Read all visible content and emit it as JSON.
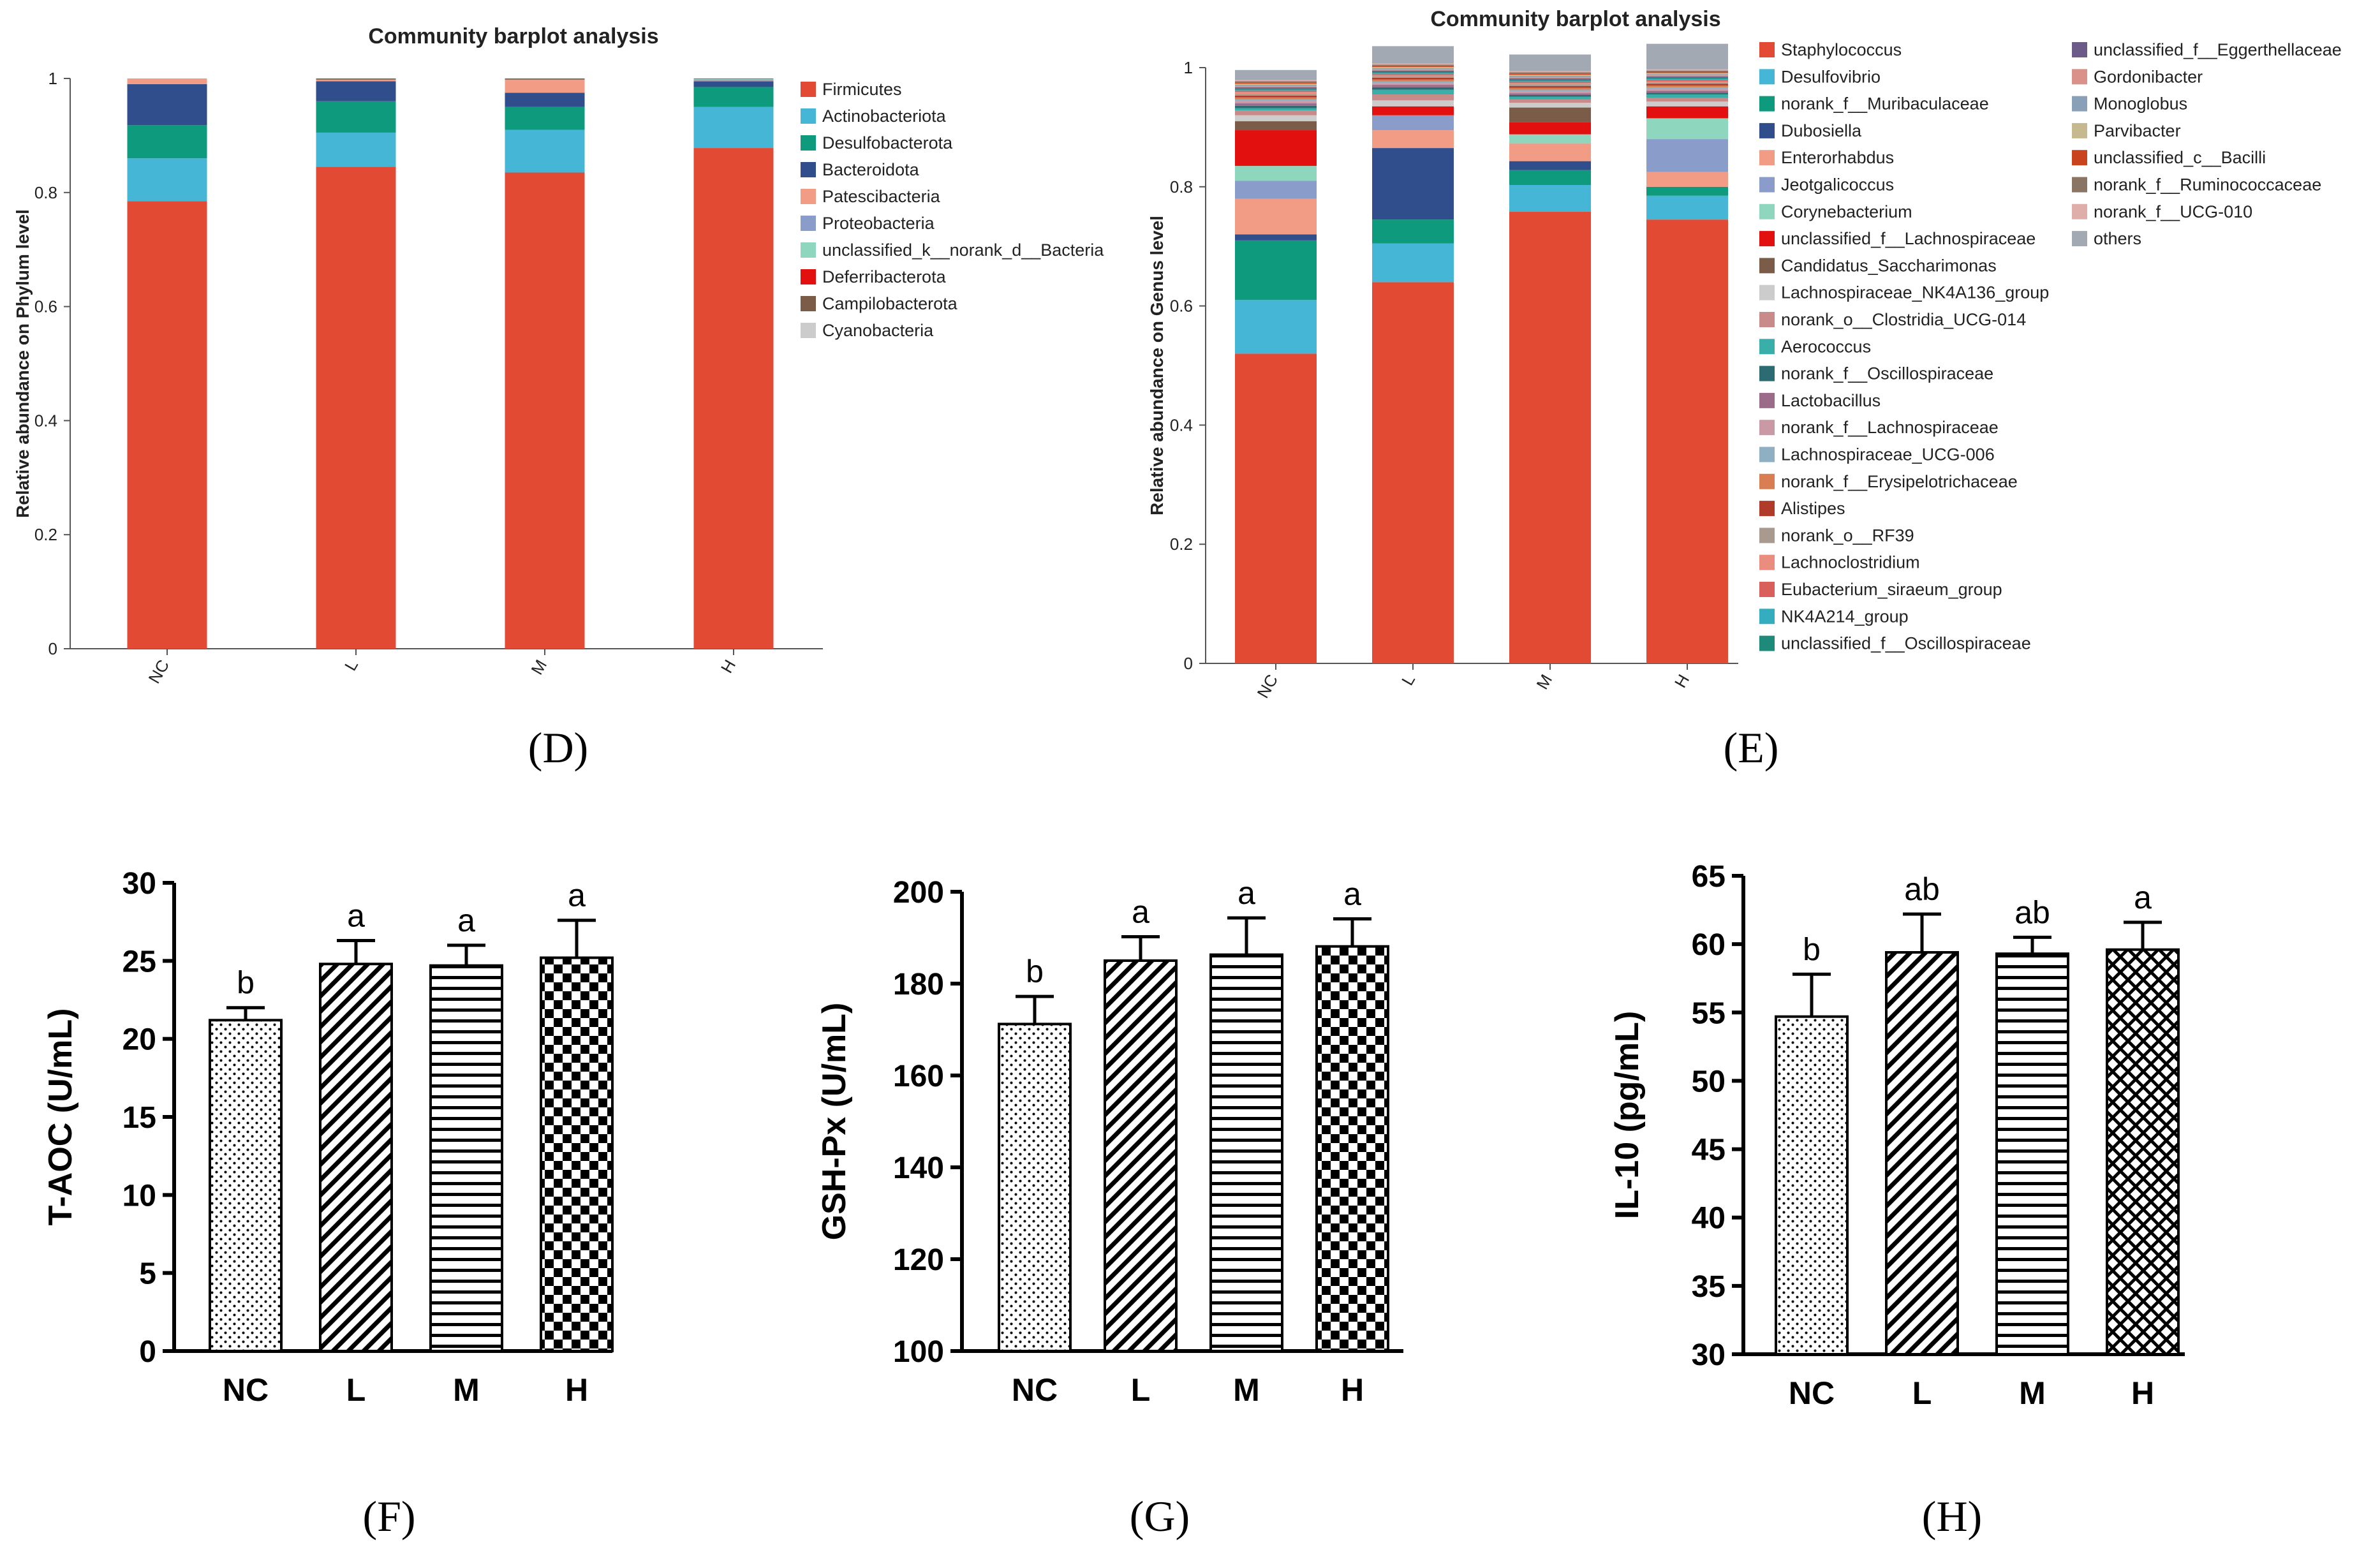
{
  "colors": {
    "phylum": [
      "#e34a33",
      "#45b6d6",
      "#0d9a7d",
      "#304d8c",
      "#f29c85",
      "#8a9cc9",
      "#8fd6bf",
      "#e31010",
      "#7a5c48",
      "#cccccc"
    ],
    "genus": [
      "#e34a33",
      "#45b6d6",
      "#0d9a7d",
      "#304d8c",
      "#f29c85",
      "#8a9cc9",
      "#8fd6bf",
      "#e31010",
      "#7a5c48",
      "#cccccc",
      "#c98a8a",
      "#3aaea8",
      "#2d6b73",
      "#9b6b8a",
      "#c99aa5",
      "#8fb0c2",
      "#d97d52",
      "#b13b2a",
      "#a89a8e",
      "#eb8d7e",
      "#d9605a",
      "#34aebf",
      "#1e8a7a",
      "#6c5a88",
      "#d9918a",
      "#8a9fb8",
      "#c7b98f",
      "#c9431e",
      "#8a7565",
      "#e0aeaa",
      "#a3a9b2"
    ]
  },
  "chart_data": [
    {
      "panel": "D",
      "type": "bar",
      "stacked": true,
      "title": "Community barplot analysis",
      "xlabel": "",
      "ylabel": "Relative abundance on Phylum level",
      "ylim": [
        0,
        1
      ],
      "yticks": [
        "0",
        "0.2",
        "0.4",
        "0.6",
        "0.8",
        "1"
      ],
      "categories": [
        "NC",
        "L",
        "M",
        "H"
      ],
      "series": [
        {
          "name": "Firmicutes",
          "values": [
            0.785,
            0.845,
            0.835,
            0.878
          ]
        },
        {
          "name": "Actinobacteriota",
          "values": [
            0.075,
            0.06,
            0.075,
            0.072
          ]
        },
        {
          "name": "Desulfobacterota",
          "values": [
            0.058,
            0.055,
            0.04,
            0.035
          ]
        },
        {
          "name": "Bacteroidota",
          "values": [
            0.072,
            0.035,
            0.025,
            0.01
          ]
        },
        {
          "name": "Patescibacteria",
          "values": [
            0.01,
            0.003,
            0.023,
            0.001
          ]
        },
        {
          "name": "Proteobacteria",
          "values": [
            0.0,
            0.0,
            0.0,
            0.002
          ]
        },
        {
          "name": "unclassified_k__norank_d__Bacteria",
          "values": [
            0.0,
            0.0,
            0.0,
            0.001
          ]
        },
        {
          "name": "Deferribacterota",
          "values": [
            0.0,
            0.0,
            0.0,
            0.0
          ]
        },
        {
          "name": "Campilobacterota",
          "values": [
            0.0,
            0.002,
            0.002,
            0.001
          ]
        },
        {
          "name": "Cyanobacteria",
          "values": [
            0.0,
            0.0,
            0.0,
            0.0
          ]
        }
      ]
    },
    {
      "panel": "E",
      "type": "bar",
      "stacked": true,
      "title": "Community barplot analysis",
      "xlabel": "",
      "ylabel": "Relative abundance on Genus level",
      "ylim": [
        0,
        1
      ],
      "yticks": [
        "0",
        "0.2",
        "0.4",
        "0.6",
        "0.8",
        "1"
      ],
      "categories": [
        "NC",
        "L",
        "M",
        "H"
      ],
      "series": [
        {
          "name": "Staphylococcus",
          "values": [
            0.52,
            0.64,
            0.758,
            0.745
          ]
        },
        {
          "name": "Desulfovibrio",
          "values": [
            0.09,
            0.065,
            0.045,
            0.04
          ]
        },
        {
          "name": "norank_f__Muribaculaceae",
          "values": [
            0.1,
            0.04,
            0.025,
            0.015
          ]
        },
        {
          "name": "Dubosiella",
          "values": [
            0.01,
            0.12,
            0.015,
            0.0
          ]
        },
        {
          "name": "Enterorhabdus",
          "values": [
            0.06,
            0.03,
            0.03,
            0.025
          ]
        },
        {
          "name": "Jeotgalicoccus",
          "values": [
            0.03,
            0.025,
            0.0,
            0.055
          ]
        },
        {
          "name": "Corynebacterium",
          "values": [
            0.025,
            0.0,
            0.015,
            0.035
          ]
        },
        {
          "name": "unclassified_f__Lachnospiraceae",
          "values": [
            0.06,
            0.015,
            0.02,
            0.02
          ]
        },
        {
          "name": "Candidatus_Saccharimonas",
          "values": [
            0.015,
            0.0,
            0.025,
            0.0
          ]
        },
        {
          "name": "Lachnospiraceae_NK4A136_group",
          "values": [
            0.01,
            0.01,
            0.008,
            0.008
          ]
        },
        {
          "name": "norank_o__Clostridia_UCG-014",
          "values": [
            0.008,
            0.01,
            0.006,
            0.006
          ]
        },
        {
          "name": "Aerococcus",
          "values": [
            0.004,
            0.008,
            0.004,
            0.006
          ]
        },
        {
          "name": "norank_f__Oscillospiraceae",
          "values": [
            0.004,
            0.004,
            0.003,
            0.003
          ]
        },
        {
          "name": "Lactobacillus",
          "values": [
            0.004,
            0.004,
            0.003,
            0.003
          ]
        },
        {
          "name": "norank_f__Lachnospiraceae",
          "values": [
            0.004,
            0.003,
            0.003,
            0.003
          ]
        },
        {
          "name": "Lachnospiraceae_UCG-006",
          "values": [
            0.003,
            0.003,
            0.003,
            0.003
          ]
        },
        {
          "name": "norank_f__Erysipelotrichaceae",
          "values": [
            0.003,
            0.003,
            0.003,
            0.003
          ]
        },
        {
          "name": "Alistipes",
          "values": [
            0.003,
            0.003,
            0.003,
            0.003
          ]
        },
        {
          "name": "norank_o__RF39",
          "values": [
            0.003,
            0.002,
            0.003,
            0.002
          ]
        },
        {
          "name": "Lachnoclostridium",
          "values": [
            0.003,
            0.002,
            0.002,
            0.002
          ]
        },
        {
          "name": "Eubacterium_siraeum_group",
          "values": [
            0.002,
            0.002,
            0.002,
            0.002
          ]
        },
        {
          "name": "NK4A214_group",
          "values": [
            0.002,
            0.002,
            0.002,
            0.002
          ]
        },
        {
          "name": "unclassified_f__Oscillospiraceae",
          "values": [
            0.002,
            0.002,
            0.002,
            0.002
          ]
        },
        {
          "name": "unclassified_f__Eggerthellaceae",
          "values": [
            0.002,
            0.002,
            0.002,
            0.002
          ]
        },
        {
          "name": "Gordonibacter",
          "values": [
            0.002,
            0.002,
            0.002,
            0.002
          ]
        },
        {
          "name": "Monoglobus",
          "values": [
            0.002,
            0.002,
            0.002,
            0.002
          ]
        },
        {
          "name": "Parvibacter",
          "values": [
            0.002,
            0.002,
            0.002,
            0.002
          ]
        },
        {
          "name": "unclassified_c__Bacilli",
          "values": [
            0.002,
            0.002,
            0.002,
            0.002
          ]
        },
        {
          "name": "norank_f__Ruminococcaceae",
          "values": [
            0.002,
            0.002,
            0.002,
            0.002
          ]
        },
        {
          "name": "norank_f__UCG-010",
          "values": [
            0.002,
            0.002,
            0.002,
            0.002
          ]
        },
        {
          "name": "others",
          "values": [
            0.017,
            0.029,
            0.028,
            0.043
          ]
        }
      ]
    },
    {
      "panel": "F",
      "type": "bar",
      "title": "",
      "xlabel": "",
      "ylabel": "T-AOC (U/mL)",
      "ylim": [
        0,
        30
      ],
      "yticks": [
        "0",
        "5",
        "10",
        "15",
        "20",
        "25",
        "30"
      ],
      "categories": [
        "NC",
        "L",
        "M",
        "H"
      ],
      "values": [
        21.2,
        24.8,
        24.7,
        25.2
      ],
      "errors": [
        0.8,
        1.5,
        1.3,
        2.4
      ],
      "significance": [
        "b",
        "a",
        "a",
        "a"
      ],
      "patterns": [
        "dots",
        "diagonal",
        "horizontal",
        "checker"
      ]
    },
    {
      "panel": "G",
      "type": "bar",
      "title": "",
      "xlabel": "",
      "ylabel": "GSH-Px (U/mL)",
      "ylim": [
        100,
        200
      ],
      "yticks": [
        "100",
        "120",
        "140",
        "160",
        "180",
        "200"
      ],
      "categories": [
        "NC",
        "L",
        "M",
        "H"
      ],
      "values": [
        171.2,
        185.0,
        186.3,
        188.1
      ],
      "errors": [
        6.0,
        5.2,
        8.0,
        6.0
      ],
      "significance": [
        "b",
        "a",
        "a",
        "a"
      ],
      "patterns": [
        "dots",
        "diagonal",
        "horizontal",
        "checker"
      ]
    },
    {
      "panel": "H",
      "type": "bar",
      "title": "",
      "xlabel": "",
      "ylabel": "IL-10 (pg/mL)",
      "ylim": [
        30,
        65
      ],
      "yticks": [
        "30",
        "35",
        "40",
        "45",
        "50",
        "55",
        "60",
        "65"
      ],
      "categories": [
        "NC",
        "L",
        "M",
        "H"
      ],
      "values": [
        54.7,
        59.4,
        59.3,
        59.6
      ],
      "errors": [
        3.1,
        2.8,
        1.2,
        2.0
      ],
      "significance": [
        "b",
        "ab",
        "ab",
        "a"
      ],
      "patterns": [
        "dots",
        "diagonal",
        "horizontal",
        "zigzag"
      ]
    }
  ],
  "panel_labels": [
    "(D)",
    "(E)",
    "(F)",
    "(G)",
    "(H)"
  ]
}
